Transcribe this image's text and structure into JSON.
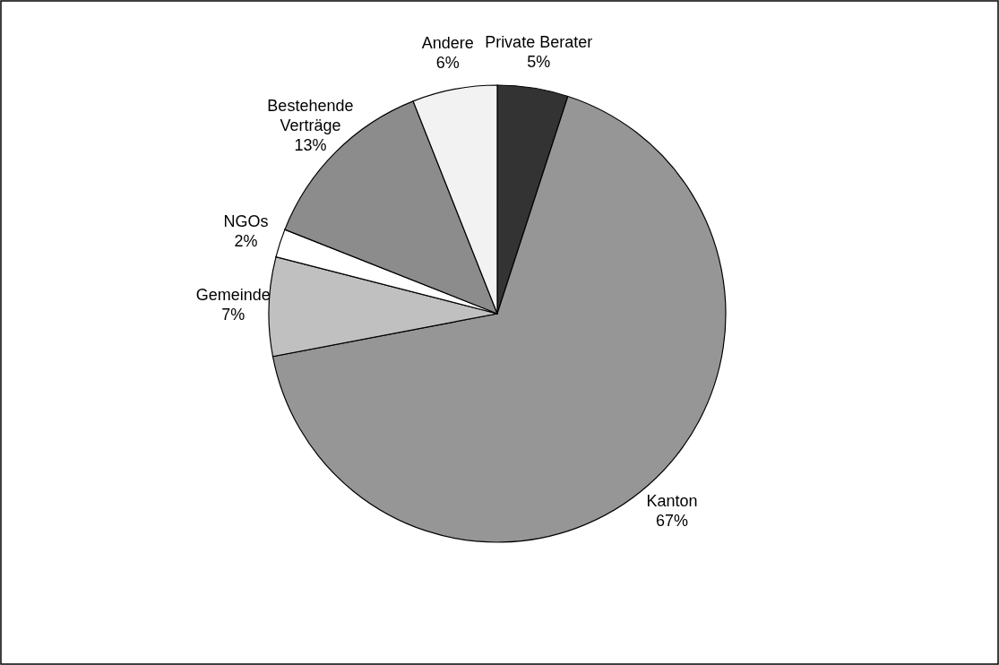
{
  "chart_data": {
    "type": "pie",
    "categories": [
      "Private Berater",
      "Kanton",
      "Gemeinde",
      "NGOs",
      "Bestehende Verträge",
      "Andere"
    ],
    "values": [
      5,
      67,
      7,
      2,
      13,
      6
    ],
    "value_labels": [
      "5%",
      "67%",
      "7%",
      "2%",
      "13%",
      "6%"
    ],
    "colors": [
      "#333333",
      "#969696",
      "#c0c0c0",
      "#ffffff",
      "#8c8c8c",
      "#f2f2f2"
    ]
  }
}
